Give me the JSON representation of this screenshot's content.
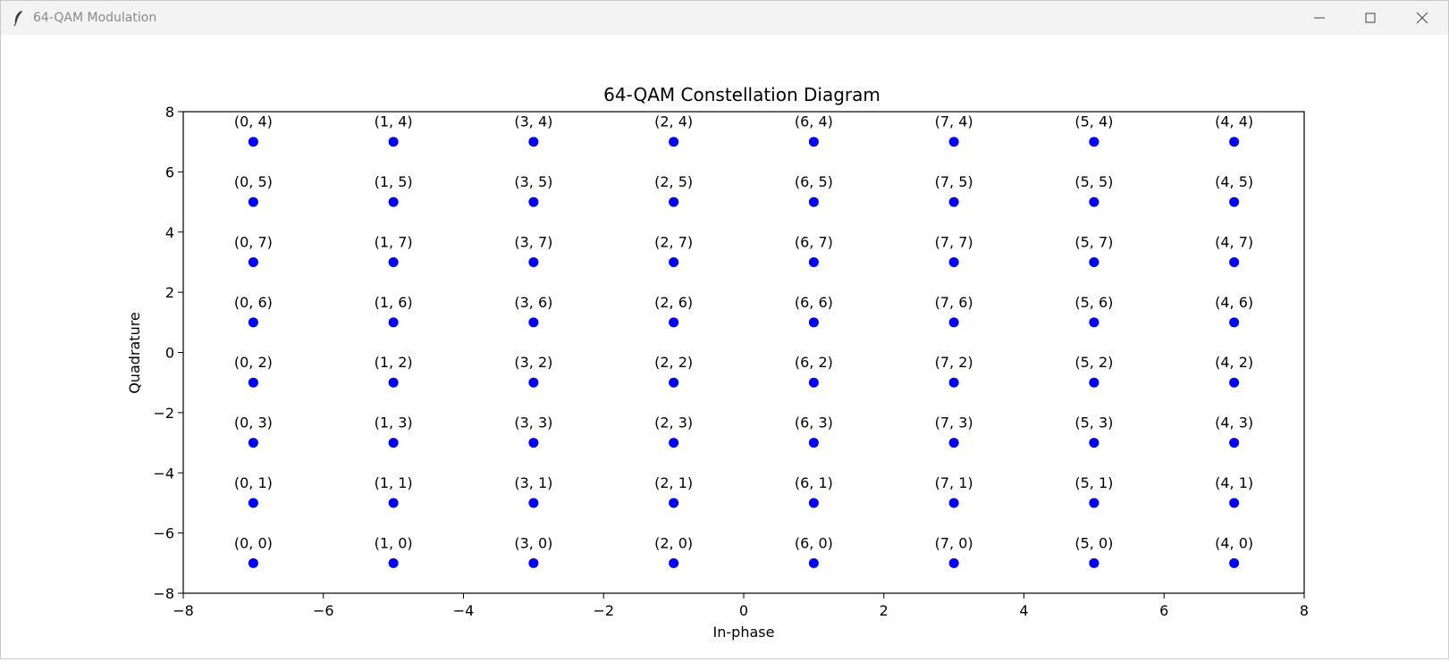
{
  "window": {
    "title": "64-QAM Modulation",
    "controls": [
      "minimize",
      "maximize",
      "close"
    ],
    "icon": "feather-icon"
  },
  "chart_data": {
    "type": "scatter",
    "title": "64-QAM Constellation Diagram",
    "xlabel": "In-phase",
    "ylabel": "Quadrature",
    "xlim": [
      -8,
      8
    ],
    "ylim": [
      -8,
      8
    ],
    "xticks": [
      -8,
      -6,
      -4,
      -2,
      0,
      2,
      4,
      6,
      8
    ],
    "yticks": [
      -8,
      -6,
      -4,
      -2,
      0,
      2,
      4,
      6,
      8
    ],
    "grid": false,
    "marker_color": "#0000ff",
    "points": [
      {
        "x": -7,
        "y": 7,
        "label": "(0, 4)"
      },
      {
        "x": -5,
        "y": 7,
        "label": "(1, 4)"
      },
      {
        "x": -3,
        "y": 7,
        "label": "(3, 4)"
      },
      {
        "x": -1,
        "y": 7,
        "label": "(2, 4)"
      },
      {
        "x": 1,
        "y": 7,
        "label": "(6, 4)"
      },
      {
        "x": 3,
        "y": 7,
        "label": "(7, 4)"
      },
      {
        "x": 5,
        "y": 7,
        "label": "(5, 4)"
      },
      {
        "x": 7,
        "y": 7,
        "label": "(4, 4)"
      },
      {
        "x": -7,
        "y": 5,
        "label": "(0, 5)"
      },
      {
        "x": -5,
        "y": 5,
        "label": "(1, 5)"
      },
      {
        "x": -3,
        "y": 5,
        "label": "(3, 5)"
      },
      {
        "x": -1,
        "y": 5,
        "label": "(2, 5)"
      },
      {
        "x": 1,
        "y": 5,
        "label": "(6, 5)"
      },
      {
        "x": 3,
        "y": 5,
        "label": "(7, 5)"
      },
      {
        "x": 5,
        "y": 5,
        "label": "(5, 5)"
      },
      {
        "x": 7,
        "y": 5,
        "label": "(4, 5)"
      },
      {
        "x": -7,
        "y": 3,
        "label": "(0, 7)"
      },
      {
        "x": -5,
        "y": 3,
        "label": "(1, 7)"
      },
      {
        "x": -3,
        "y": 3,
        "label": "(3, 7)"
      },
      {
        "x": -1,
        "y": 3,
        "label": "(2, 7)"
      },
      {
        "x": 1,
        "y": 3,
        "label": "(6, 7)"
      },
      {
        "x": 3,
        "y": 3,
        "label": "(7, 7)"
      },
      {
        "x": 5,
        "y": 3,
        "label": "(5, 7)"
      },
      {
        "x": 7,
        "y": 3,
        "label": "(4, 7)"
      },
      {
        "x": -7,
        "y": 1,
        "label": "(0, 6)"
      },
      {
        "x": -5,
        "y": 1,
        "label": "(1, 6)"
      },
      {
        "x": -3,
        "y": 1,
        "label": "(3, 6)"
      },
      {
        "x": -1,
        "y": 1,
        "label": "(2, 6)"
      },
      {
        "x": 1,
        "y": 1,
        "label": "(6, 6)"
      },
      {
        "x": 3,
        "y": 1,
        "label": "(7, 6)"
      },
      {
        "x": 5,
        "y": 1,
        "label": "(5, 6)"
      },
      {
        "x": 7,
        "y": 1,
        "label": "(4, 6)"
      },
      {
        "x": -7,
        "y": -1,
        "label": "(0, 2)"
      },
      {
        "x": -5,
        "y": -1,
        "label": "(1, 2)"
      },
      {
        "x": -3,
        "y": -1,
        "label": "(3, 2)"
      },
      {
        "x": -1,
        "y": -1,
        "label": "(2, 2)"
      },
      {
        "x": 1,
        "y": -1,
        "label": "(6, 2)"
      },
      {
        "x": 3,
        "y": -1,
        "label": "(7, 2)"
      },
      {
        "x": 5,
        "y": -1,
        "label": "(5, 2)"
      },
      {
        "x": 7,
        "y": -1,
        "label": "(4, 2)"
      },
      {
        "x": -7,
        "y": -3,
        "label": "(0, 3)"
      },
      {
        "x": -5,
        "y": -3,
        "label": "(1, 3)"
      },
      {
        "x": -3,
        "y": -3,
        "label": "(3, 3)"
      },
      {
        "x": -1,
        "y": -3,
        "label": "(2, 3)"
      },
      {
        "x": 1,
        "y": -3,
        "label": "(6, 3)"
      },
      {
        "x": 3,
        "y": -3,
        "label": "(7, 3)"
      },
      {
        "x": 5,
        "y": -3,
        "label": "(5, 3)"
      },
      {
        "x": 7,
        "y": -3,
        "label": "(4, 3)"
      },
      {
        "x": -7,
        "y": -5,
        "label": "(0, 1)"
      },
      {
        "x": -5,
        "y": -5,
        "label": "(1, 1)"
      },
      {
        "x": -3,
        "y": -5,
        "label": "(3, 1)"
      },
      {
        "x": -1,
        "y": -5,
        "label": "(2, 1)"
      },
      {
        "x": 1,
        "y": -5,
        "label": "(6, 1)"
      },
      {
        "x": 3,
        "y": -5,
        "label": "(7, 1)"
      },
      {
        "x": 5,
        "y": -5,
        "label": "(5, 1)"
      },
      {
        "x": 7,
        "y": -5,
        "label": "(4, 1)"
      },
      {
        "x": -7,
        "y": -7,
        "label": "(0, 0)"
      },
      {
        "x": -5,
        "y": -7,
        "label": "(1, 0)"
      },
      {
        "x": -3,
        "y": -7,
        "label": "(3, 0)"
      },
      {
        "x": -1,
        "y": -7,
        "label": "(2, 0)"
      },
      {
        "x": 1,
        "y": -7,
        "label": "(6, 0)"
      },
      {
        "x": 3,
        "y": -7,
        "label": "(7, 0)"
      },
      {
        "x": 5,
        "y": -7,
        "label": "(5, 0)"
      },
      {
        "x": 7,
        "y": -7,
        "label": "(4, 0)"
      }
    ]
  }
}
